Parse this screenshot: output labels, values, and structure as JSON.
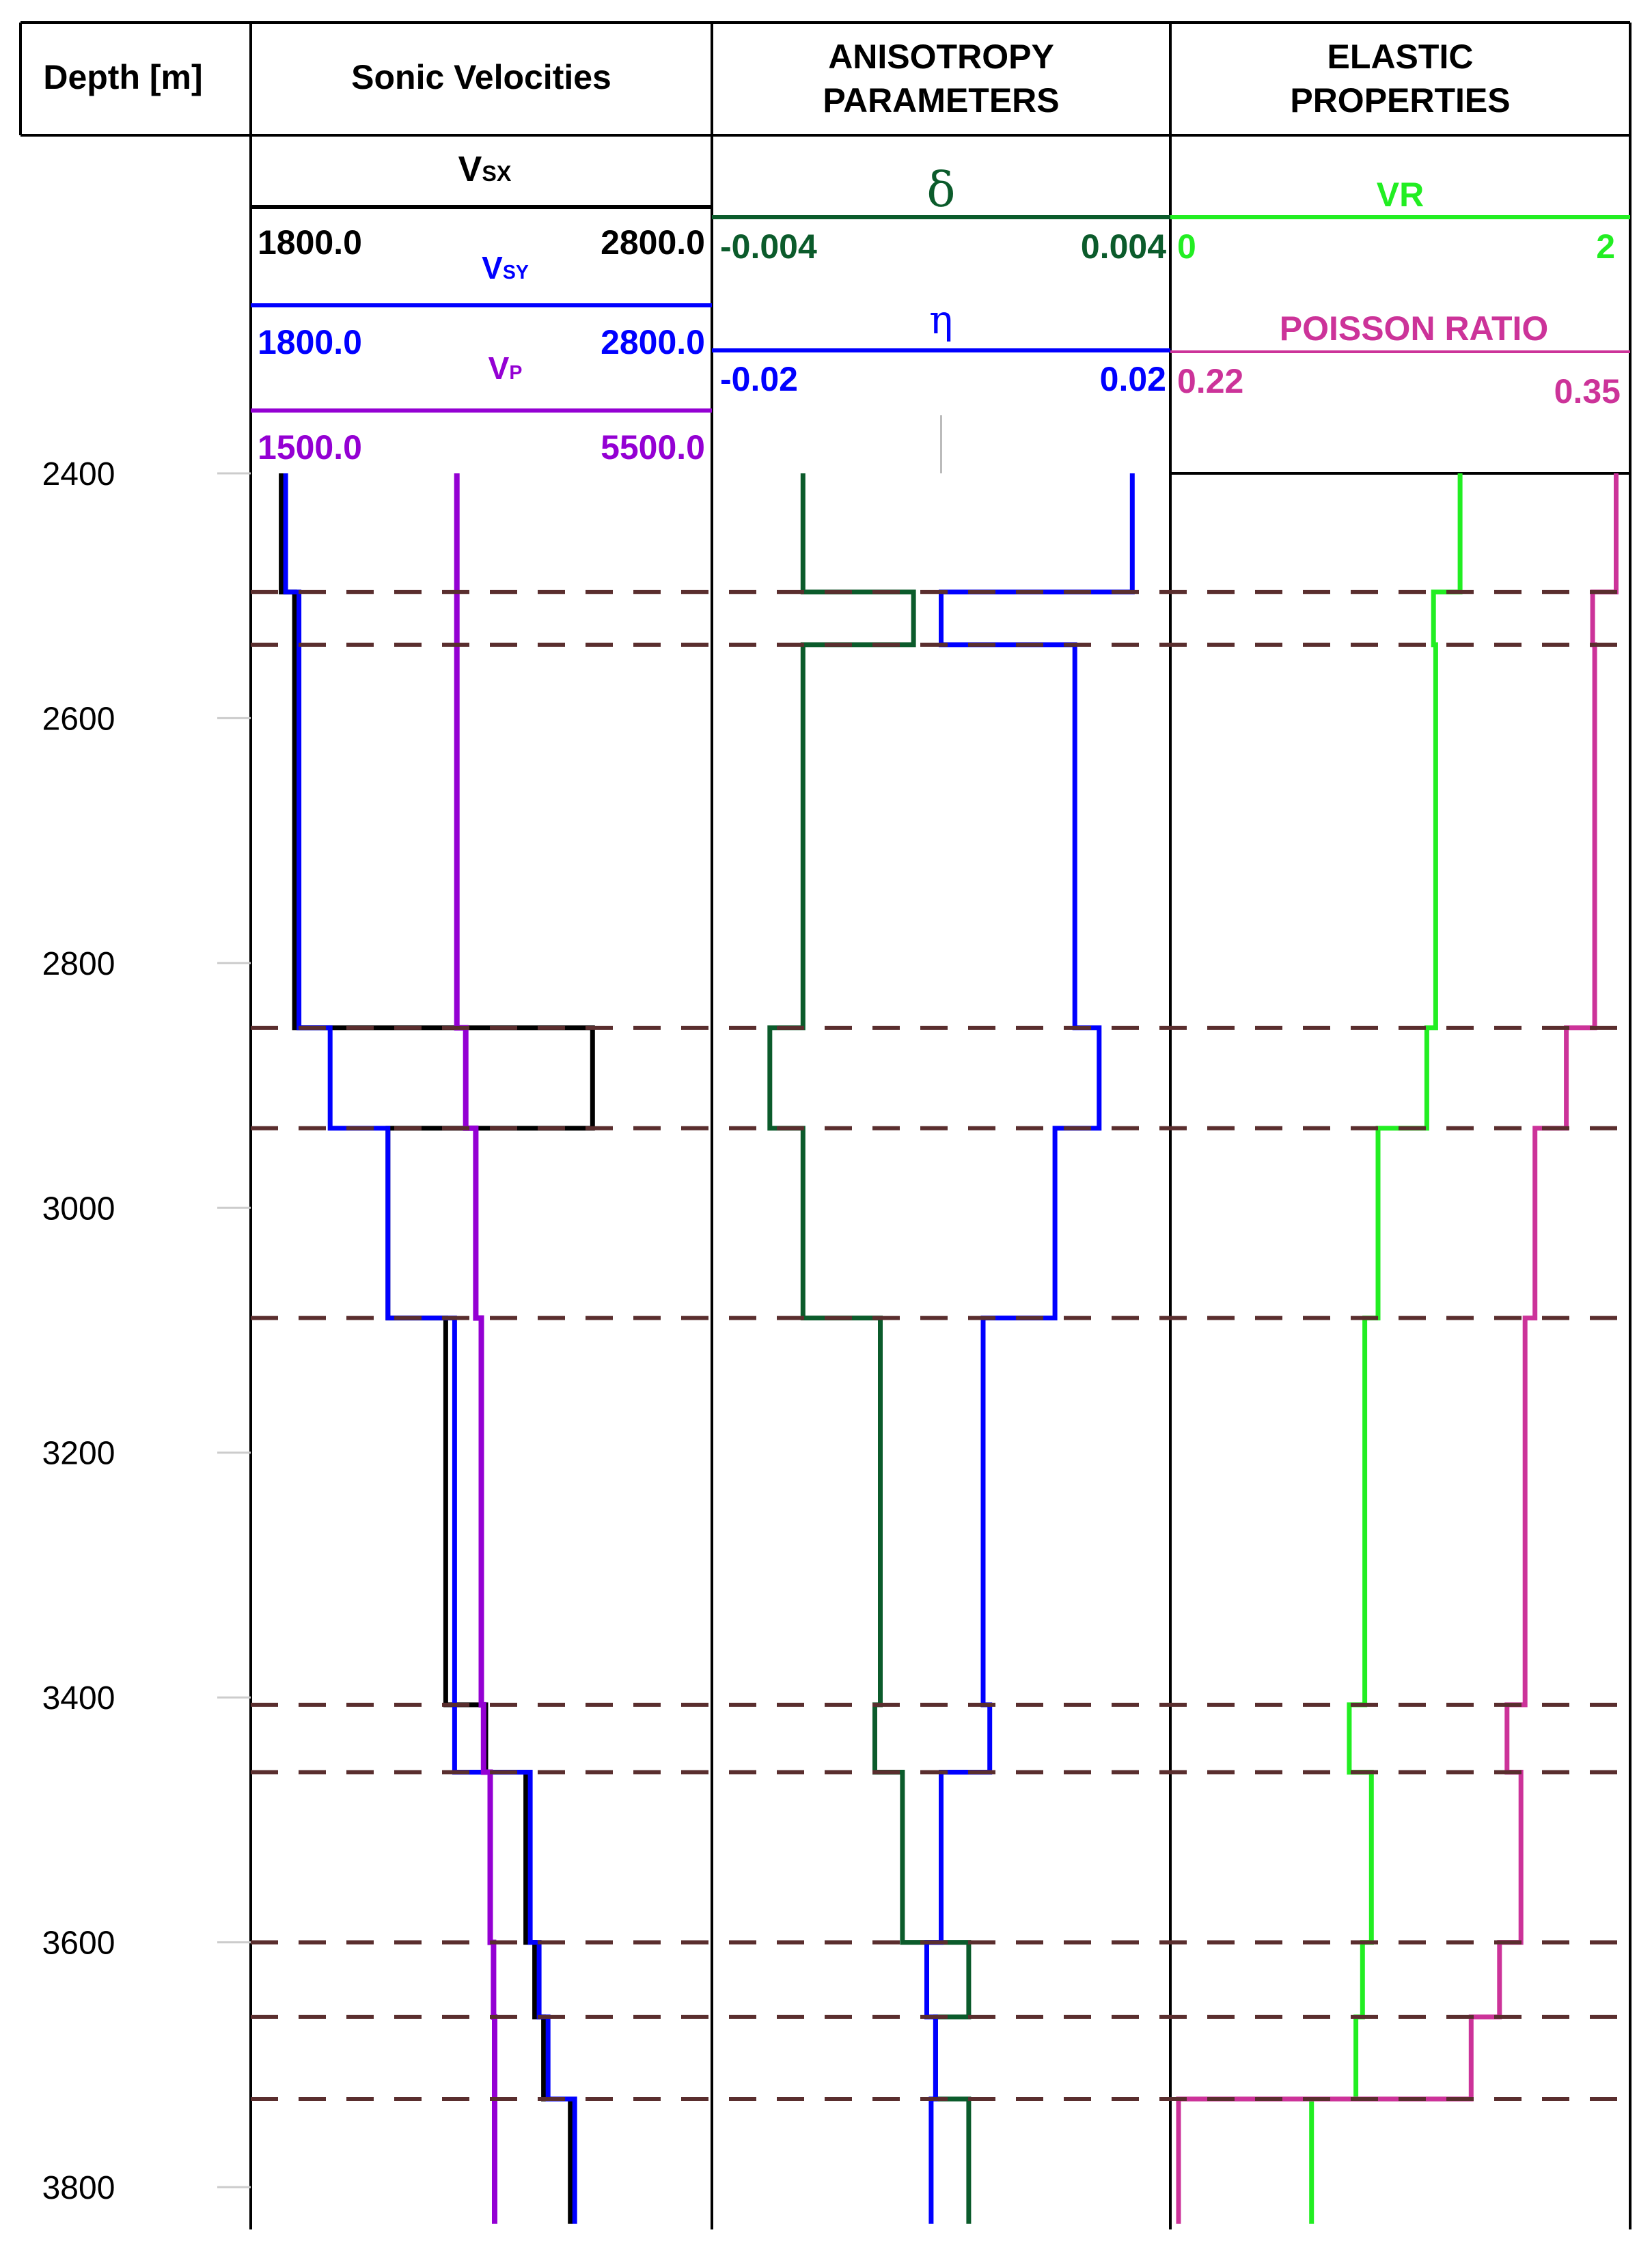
{
  "chart_data": {
    "type": "line",
    "layout": "well-log",
    "depth_axis": {
      "label": "Depth [m]",
      "range": [
        2300,
        3830
      ],
      "ticks": [
        2400,
        2600,
        2800,
        3000,
        3200,
        3400,
        3600,
        3800
      ],
      "direction": "increasing-downward"
    },
    "boundaries": [
      2497,
      2540,
      2853,
      2935,
      3090,
      3406,
      3461,
      3600,
      3661,
      3728
    ],
    "boundary_color": "#5a2e2e",
    "tracks": [
      {
        "title": "Sonic Velocities",
        "curves": [
          {
            "name": "Vsx",
            "name_main": "V",
            "name_sub": "SX",
            "color": "#000000",
            "min": 1800.0,
            "max": 2800.0,
            "min_label": "1800.0",
            "max_label": "2800.0",
            "values": [
              1850,
              1880,
              1880,
              2550,
              2090,
              2220,
              2310,
              2400,
              2420,
              2440,
              2500
            ]
          },
          {
            "name": "Vsy",
            "name_main": "V",
            "name_sub": "SY",
            "color": "#0000ff",
            "min": 1800.0,
            "max": 2800.0,
            "min_label": "1800.0",
            "max_label": "2800.0",
            "values": [
              1860,
              1890,
              1890,
              1960,
              2090,
              2240,
              2240,
              2410,
              2430,
              2450,
              2510
            ]
          },
          {
            "name": "Vp",
            "name_main": "V",
            "name_sub": "P",
            "color": "#9400d3",
            "min": 1500.0,
            "max": 5500.0,
            "min_label": "1500.0",
            "max_label": "5500.0",
            "values": [
              3280,
              3280,
              3280,
              3360,
              3450,
              3500,
              3520,
              3580,
              3610,
              3620,
              3620
            ]
          }
        ]
      },
      {
        "title": "ANISOTROPY PARAMETERS",
        "curves": [
          {
            "name": "δ",
            "name_main": "δ",
            "name_sub": "",
            "color": "#0b5b2b",
            "min": -0.004,
            "max": 0.004,
            "min_label": "-0.004",
            "max_label": "0.004",
            "values": [
              -0.0025,
              -0.0005,
              -0.0025,
              -0.0031,
              -0.0025,
              -0.0011,
              -0.0012,
              -0.0007,
              0.0005,
              -0.0001,
              0.0005
            ]
          },
          {
            "name": "η",
            "name_main": "η",
            "name_sub": "",
            "color": "#0000ff",
            "min": -0.02,
            "max": 0.02,
            "min_label": "-0.02",
            "max_label": "0.02",
            "values": [
              0.0173,
              0.0,
              0.0121,
              0.0143,
              0.0103,
              0.0038,
              0.0044,
              0.0,
              -0.0013,
              -0.0005,
              -0.0009
            ]
          }
        ]
      },
      {
        "title": "ELASTIC PROPERTIES",
        "curves": [
          {
            "name": "VR",
            "name_main": "VR",
            "name_sub": "",
            "color": "#22ee22",
            "min": 0,
            "max": 2,
            "min_label": "0",
            "max_label": "2",
            "values": [
              1.27,
              1.15,
              1.16,
              1.12,
              0.9,
              0.84,
              0.77,
              0.87,
              0.83,
              0.8,
              0.6
            ]
          },
          {
            "name": "POISSON RATIO",
            "name_main": "POISSON RATIO",
            "name_sub": "",
            "color": "#cc3399",
            "min": 0.22,
            "max": 0.35,
            "min_label": "0.22",
            "max_label": "0.35",
            "values": [
              0.3483,
              0.3414,
              0.342,
              0.3337,
              0.3245,
              0.3216,
              0.3163,
              0.3204,
              0.3141,
              0.3058,
              0.22
            ]
          }
        ]
      }
    ]
  }
}
